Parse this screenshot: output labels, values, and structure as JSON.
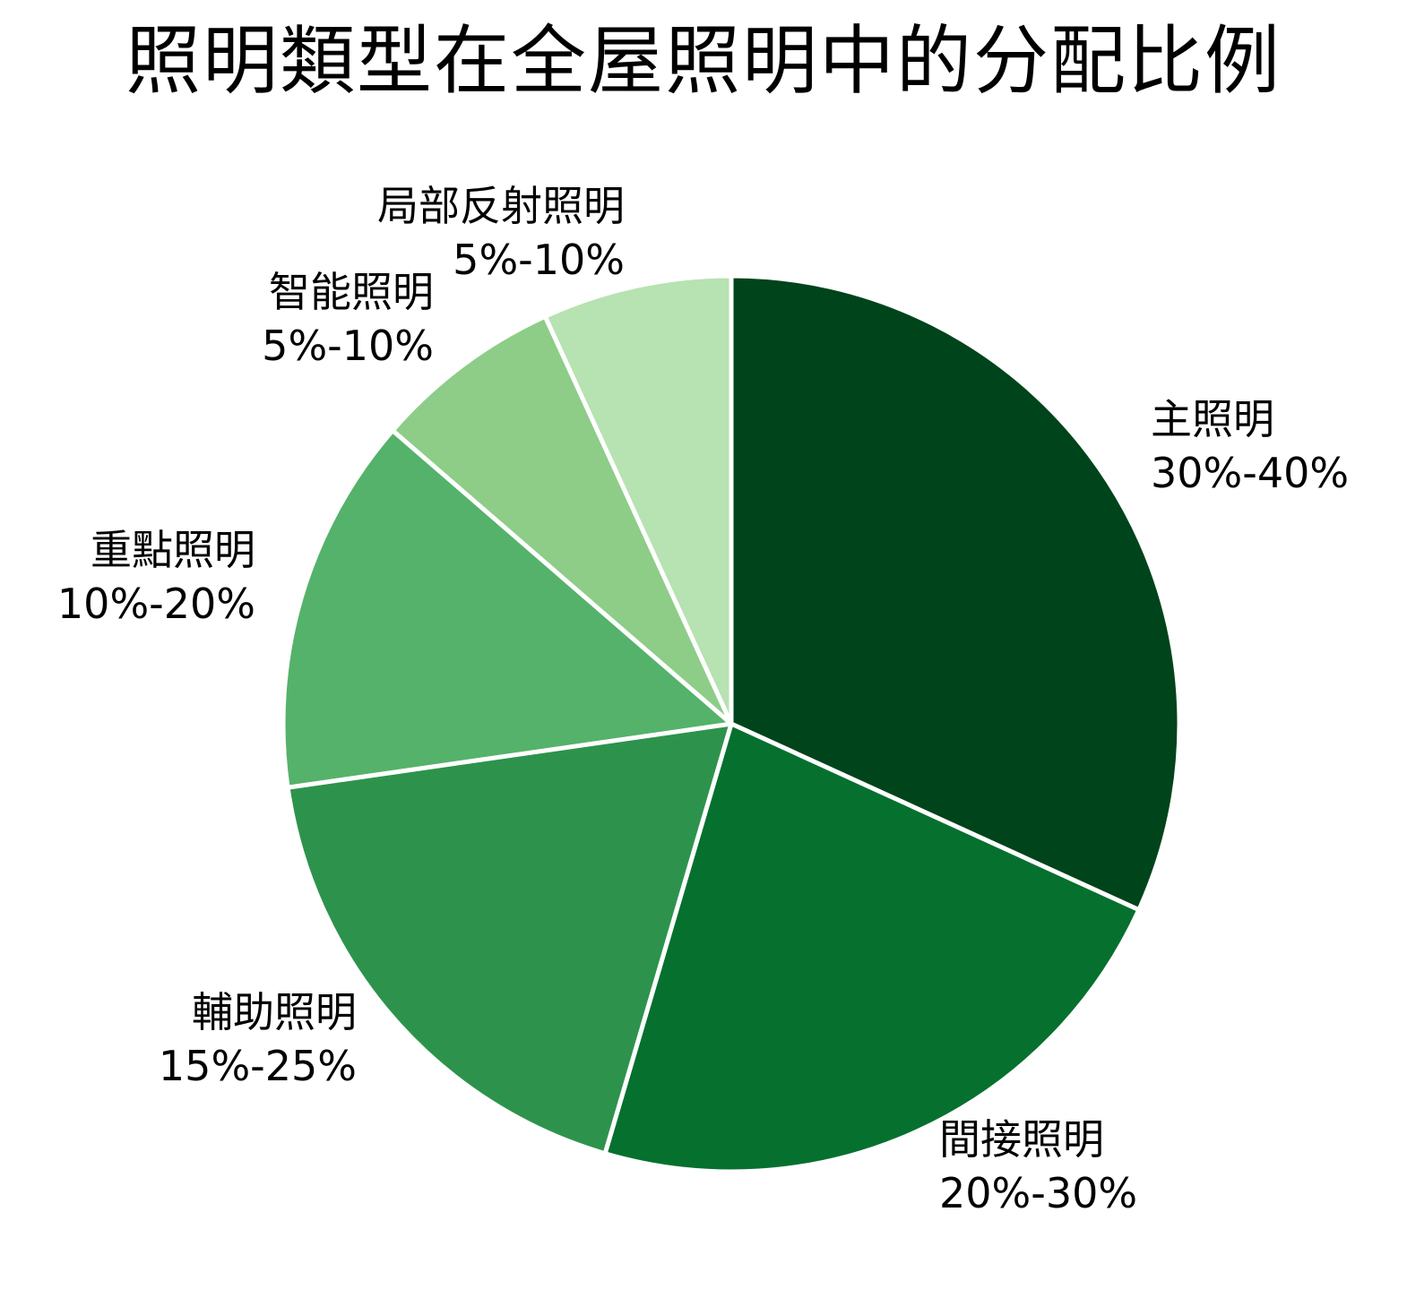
{
  "chart_data": {
    "type": "pie",
    "title": "照明類型在全屋照明中的分配比例",
    "start_angle_deg": 0,
    "direction": "clockwise",
    "categories": [
      "主照明",
      "間接照明",
      "輔助照明",
      "重點照明",
      "智能照明",
      "局部反射照明"
    ],
    "ranges": [
      "30%-40%",
      "20%-30%",
      "15%-25%",
      "10%-20%",
      "5%-10%",
      "5%-10%"
    ],
    "values": [
      35,
      25,
      20,
      15,
      7.5,
      7.5
    ],
    "colors": [
      "#00441b",
      "#06702f",
      "#2d934c",
      "#55b26a",
      "#8dcd88",
      "#b7e2b1"
    ],
    "legend": "none (inline labels)"
  },
  "labels": [
    {
      "name": "主照明",
      "range": "30%-40%"
    },
    {
      "name": "間接照明",
      "range": "20%-30%"
    },
    {
      "name": "輔助照明",
      "range": "15%-25%"
    },
    {
      "name": "重點照明",
      "range": "10%-20%"
    },
    {
      "name": "智能照明",
      "range": "5%-10%"
    },
    {
      "name": "局部反射照明",
      "range": "5%-10%"
    }
  ]
}
